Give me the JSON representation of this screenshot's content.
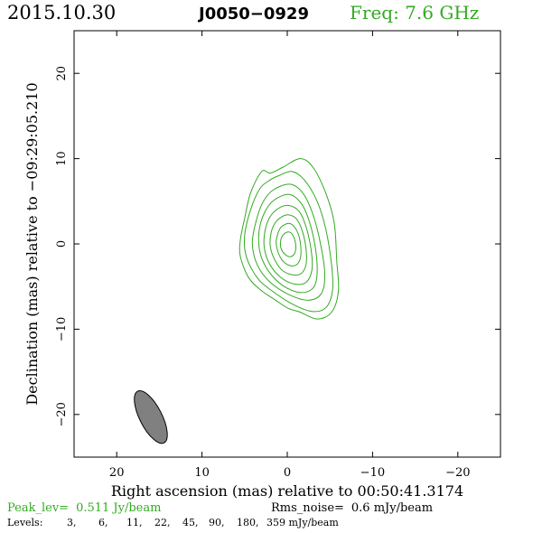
{
  "header": {
    "date": "2015.10.30",
    "source": "J0050−0929",
    "frequency": "Freq: 7.6 GHz"
  },
  "footer": {
    "peak_label": "Peak_lev=",
    "peak_value": "0.511 Jy/beam",
    "rms_label": "Rms_noise=",
    "rms_value": "0.6 mJy/beam",
    "levels_label": "Levels:",
    "levels": [
      "3,",
      "6,",
      "11,",
      "22,",
      "45,",
      "90,",
      "180,",
      "359 mJy/beam"
    ]
  },
  "colors": {
    "contour": "#33aa22",
    "beam_fill": "#808080",
    "axis": "#000000"
  },
  "chart_data": {
    "type": "contour",
    "xlabel": "Right ascension (mas) relative to 00:50:41.3174",
    "ylabel": "Declination (mas) relative to −09:29:05.210",
    "x_range": [
      25,
      -25
    ],
    "y_range": [
      -25,
      25
    ],
    "x_ticks": [
      20,
      10,
      0,
      -10,
      -20
    ],
    "y_ticks": [
      20,
      10,
      0,
      -10,
      -20
    ],
    "x_tick_labels": [
      "20",
      "10",
      "0",
      "−10",
      "−20"
    ],
    "y_tick_labels": [
      "20",
      "10",
      "0",
      "−10",
      "−20"
    ],
    "contour_levels_mJy": [
      3,
      6,
      11,
      22,
      45,
      90,
      180,
      359
    ],
    "contours": [
      [
        [
          -1.5,
          10.0
        ],
        [
          -3.0,
          9.0
        ],
        [
          -4.5,
          6.0
        ],
        [
          -5.5,
          2.5
        ],
        [
          -5.8,
          -2.0
        ],
        [
          -6.0,
          -5.5
        ],
        [
          -5.2,
          -8.0
        ],
        [
          -3.5,
          -8.8
        ],
        [
          -1.5,
          -8.0
        ],
        [
          0.0,
          -7.5
        ],
        [
          1.5,
          -6.5
        ],
        [
          3.0,
          -5.5
        ],
        [
          4.5,
          -4.0
        ],
        [
          5.5,
          -1.5
        ],
        [
          5.5,
          0.5
        ],
        [
          5.0,
          3.0
        ],
        [
          4.3,
          6.0
        ],
        [
          3.0,
          8.5
        ],
        [
          2.0,
          8.3
        ],
        [
          0.5,
          9.0
        ]
      ],
      [
        [
          -0.5,
          8.5
        ],
        [
          -2.0,
          7.5
        ],
        [
          -3.5,
          5.0
        ],
        [
          -4.5,
          1.8
        ],
        [
          -5.2,
          -2.5
        ],
        [
          -5.3,
          -5.5
        ],
        [
          -4.5,
          -7.5
        ],
        [
          -2.8,
          -7.9
        ],
        [
          -0.5,
          -7.0
        ],
        [
          1.8,
          -5.5
        ],
        [
          3.5,
          -4.0
        ],
        [
          4.8,
          -1.5
        ],
        [
          5.0,
          1.0
        ],
        [
          4.3,
          4.0
        ],
        [
          3.2,
          6.5
        ],
        [
          2.0,
          7.5
        ],
        [
          1.0,
          8.0
        ]
      ],
      [
        [
          -0.3,
          7.0
        ],
        [
          -1.8,
          6.0
        ],
        [
          -3.0,
          3.5
        ],
        [
          -3.9,
          0.0
        ],
        [
          -4.4,
          -3.5
        ],
        [
          -4.0,
          -5.8
        ],
        [
          -2.5,
          -6.6
        ],
        [
          -0.3,
          -6.0
        ],
        [
          2.0,
          -4.5
        ],
        [
          3.5,
          -2.5
        ],
        [
          4.1,
          0.0
        ],
        [
          3.7,
          2.5
        ],
        [
          2.9,
          4.8
        ],
        [
          1.7,
          6.3
        ]
      ],
      [
        [
          -0.2,
          5.8
        ],
        [
          -1.6,
          4.8
        ],
        [
          -2.6,
          2.6
        ],
        [
          -3.3,
          -0.5
        ],
        [
          -3.5,
          -3.5
        ],
        [
          -3.0,
          -5.2
        ],
        [
          -1.5,
          -5.7
        ],
        [
          0.5,
          -4.9
        ],
        [
          2.2,
          -3.2
        ],
        [
          3.2,
          -1.0
        ],
        [
          3.3,
          1.5
        ],
        [
          2.7,
          3.6
        ],
        [
          1.6,
          5.1
        ]
      ],
      [
        [
          -0.2,
          4.5
        ],
        [
          -1.4,
          3.8
        ],
        [
          -2.2,
          2.0
        ],
        [
          -2.8,
          -0.7
        ],
        [
          -2.9,
          -3.0
        ],
        [
          -2.2,
          -4.5
        ],
        [
          -0.8,
          -4.7
        ],
        [
          0.8,
          -3.9
        ],
        [
          2.1,
          -2.3
        ],
        [
          2.7,
          -0.4
        ],
        [
          2.6,
          1.6
        ],
        [
          2.0,
          3.2
        ],
        [
          1.0,
          4.2
        ]
      ],
      [
        [
          -0.2,
          3.4
        ],
        [
          -1.1,
          2.9
        ],
        [
          -1.8,
          1.4
        ],
        [
          -2.2,
          -0.6
        ],
        [
          -2.2,
          -2.4
        ],
        [
          -1.6,
          -3.5
        ],
        [
          -0.5,
          -3.6
        ],
        [
          0.7,
          -3.0
        ],
        [
          1.6,
          -1.6
        ],
        [
          2.0,
          -0.2
        ],
        [
          1.9,
          1.3
        ],
        [
          1.4,
          2.5
        ],
        [
          0.6,
          3.2
        ]
      ],
      [
        [
          -0.2,
          2.4
        ],
        [
          -0.9,
          1.9
        ],
        [
          -1.4,
          0.8
        ],
        [
          -1.6,
          -0.6
        ],
        [
          -1.5,
          -1.8
        ],
        [
          -1.0,
          -2.5
        ],
        [
          -0.2,
          -2.5
        ],
        [
          0.6,
          -1.9
        ],
        [
          1.1,
          -0.9
        ],
        [
          1.3,
          0.2
        ],
        [
          1.1,
          1.2
        ],
        [
          0.7,
          2.0
        ]
      ],
      [
        [
          -0.2,
          1.4
        ],
        [
          -0.6,
          1.1
        ],
        [
          -0.9,
          0.4
        ],
        [
          -1.0,
          -0.5
        ],
        [
          -0.8,
          -1.2
        ],
        [
          -0.3,
          -1.5
        ],
        [
          0.3,
          -1.2
        ],
        [
          0.7,
          -0.6
        ],
        [
          0.8,
          0.2
        ],
        [
          0.6,
          0.9
        ],
        [
          0.2,
          1.3
        ]
      ]
    ],
    "beam": {
      "center_x": 16.0,
      "center_y": -20.3,
      "major_mas": 6.8,
      "minor_mas": 2.6,
      "pa_deg": 27
    },
    "grid": false
  }
}
